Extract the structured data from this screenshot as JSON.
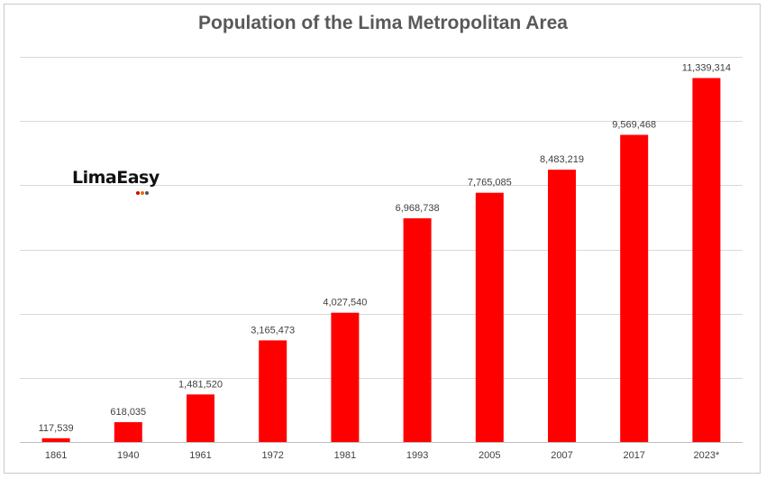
{
  "chart_data": {
    "type": "bar",
    "title": "Population of the Lima Metropolitan Area",
    "xlabel": "",
    "ylabel": "",
    "categories": [
      "1861",
      "1940",
      "1961",
      "1972",
      "1981",
      "1993",
      "2005",
      "2007",
      "2017",
      "2023*"
    ],
    "values": [
      117539,
      618035,
      1481520,
      3165473,
      4027540,
      6968738,
      7765085,
      8483219,
      9569468,
      11339314
    ],
    "value_labels": [
      "117,539",
      "618,035",
      "1,481,520",
      "3,165,473",
      "4,027,540",
      "6,968,738",
      "7,765,085",
      "8,483,219",
      "9,569,468",
      "11,339,314"
    ],
    "ylim": [
      0,
      12000000
    ],
    "y_gridlines": [
      2000000,
      4000000,
      6000000,
      8000000,
      10000000,
      12000000
    ],
    "grid": true,
    "legend": "none",
    "bar_color": "#FF0000"
  },
  "logo": {
    "text": "LimaEasy",
    "dot_colors": [
      "#d40000",
      "#e07000",
      "#555555"
    ]
  }
}
